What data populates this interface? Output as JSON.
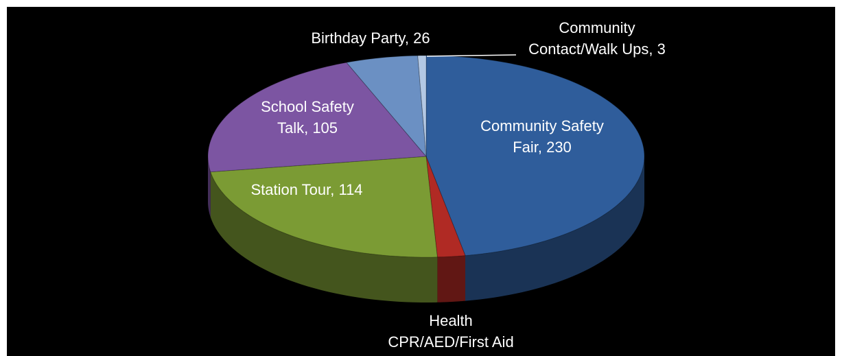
{
  "chart_data": {
    "type": "pie",
    "values": [
      230,
      10,
      114,
      105,
      26,
      3
    ],
    "value_labels": [
      [
        "Community Safety",
        "Fair, 230"
      ],
      [
        "Health",
        "CPR/AED/First Aid"
      ],
      [
        "Station Tour, 114"
      ],
      [
        "School Safety",
        "Talk, 105"
      ],
      [
        "Birthday Party, 26"
      ],
      [
        "Community",
        "Contact/Walk Ups, 3"
      ]
    ],
    "colors": [
      "#2f5d9b",
      "#b02a24",
      "#7b9b34",
      "#7c55a2",
      "#6b90c3",
      "#b3c8e4"
    ]
  }
}
